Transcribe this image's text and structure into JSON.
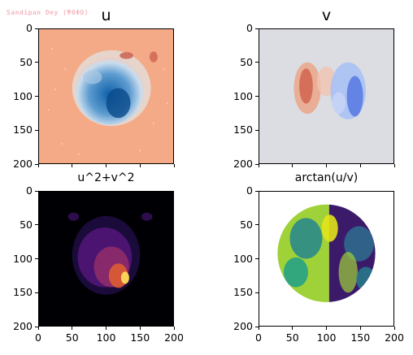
{
  "watermark": "Sandipan Dey (ΨΘΦΩ)",
  "chart_data": [
    {
      "type": "heatmap",
      "title": "u",
      "xlim": [
        0,
        200
      ],
      "ylim": [
        200,
        0
      ],
      "xticks": [],
      "yticks": [
        "0",
        "50",
        "100",
        "150",
        "200"
      ],
      "colormap": "coolwarm-reversed",
      "background_color": "#f4a987"
    },
    {
      "type": "heatmap",
      "title": "v",
      "xlim": [
        0,
        200
      ],
      "ylim": [
        200,
        0
      ],
      "xticks": [],
      "yticks": [
        "0",
        "50",
        "100",
        "150",
        "200"
      ],
      "colormap": "coolwarm",
      "background_color": "#dcdde2"
    },
    {
      "type": "heatmap",
      "title": "u^2+v^2",
      "xlim": [
        0,
        200
      ],
      "ylim": [
        200,
        0
      ],
      "xticks": [
        "0",
        "50",
        "100",
        "150",
        "200"
      ],
      "yticks": [
        "0",
        "50",
        "100",
        "150",
        "200"
      ],
      "colormap": "inferno",
      "background_color": "#000004"
    },
    {
      "type": "heatmap",
      "title": "arctan(u/v)",
      "xlim": [
        0,
        200
      ],
      "ylim": [
        200,
        0
      ],
      "xticks": [
        "0",
        "50",
        "100",
        "150",
        "200"
      ],
      "yticks": [
        "0",
        "50",
        "100",
        "150",
        "200"
      ],
      "colormap": "viridis",
      "background_color": "#ffffff"
    }
  ]
}
